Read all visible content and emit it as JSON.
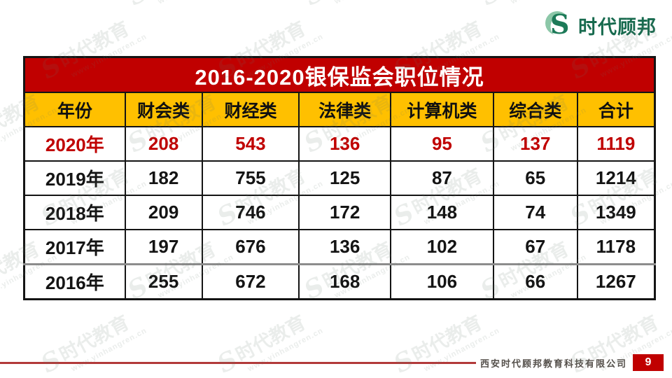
{
  "brand": {
    "name": "时代顾邦",
    "icon": "s-swirl-logo",
    "color_dark_green": "#1d7a58",
    "color_light_green": "#8cc7a8"
  },
  "watermark": {
    "brand": "时代教育",
    "url": "www.yinhangren.cn"
  },
  "chart_data": {
    "type": "table",
    "title": "2016-2020银保监会职位情况",
    "columns": [
      "年份",
      "财会类",
      "财经类",
      "法律类",
      "计算机类",
      "综合类",
      "合计"
    ],
    "rows": [
      {
        "year": "2020年",
        "values": [
          "208",
          "543",
          "136",
          "95",
          "137",
          "1119"
        ],
        "highlight": true
      },
      {
        "year": "2019年",
        "values": [
          "182",
          "755",
          "125",
          "87",
          "65",
          "1214"
        ],
        "highlight": false
      },
      {
        "year": "2018年",
        "values": [
          "209",
          "746",
          "172",
          "148",
          "74",
          "1349"
        ],
        "highlight": false
      },
      {
        "year": "2017年",
        "values": [
          "197",
          "676",
          "136",
          "102",
          "67",
          "1178"
        ],
        "highlight": false
      },
      {
        "year": "2016年",
        "values": [
          "255",
          "672",
          "168",
          "106",
          "66",
          "1267"
        ],
        "highlight": false
      }
    ],
    "title_bg": "#c00000",
    "title_color": "#ffffff",
    "header_bg": "#ffc000",
    "highlight_color": "#c00000"
  },
  "footer": {
    "company": "西安时代顾邦教育科技有限公司",
    "page": "9",
    "line_color": "#b23a3a",
    "page_bg": "#c00000"
  }
}
